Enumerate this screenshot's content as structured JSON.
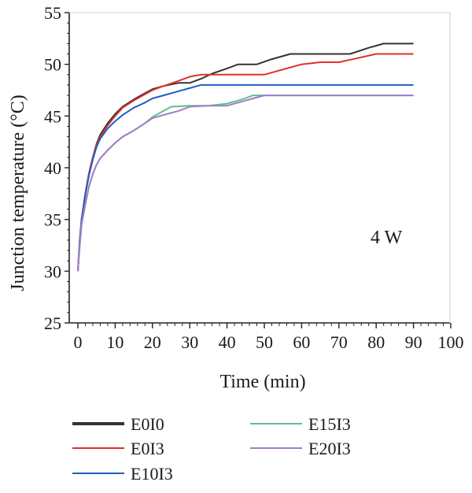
{
  "chart_data": {
    "type": "line",
    "xlabel": "Time (min)",
    "ylabel": "Junction temperature (°C)",
    "xlim": [
      0,
      100
    ],
    "ylim": [
      25,
      55
    ],
    "xticks": [
      0,
      10,
      20,
      30,
      40,
      50,
      60,
      70,
      80,
      90,
      100
    ],
    "yticks": [
      25,
      30,
      35,
      40,
      45,
      50,
      55
    ],
    "grid": false,
    "legend_position": "bottom",
    "annotation": "4 W",
    "series": [
      {
        "name": "E0I0",
        "color": "#333333",
        "points": [
          [
            0,
            30
          ],
          [
            0.5,
            33
          ],
          [
            1,
            35
          ],
          [
            2,
            37.5
          ],
          [
            3,
            39.5
          ],
          [
            4,
            41
          ],
          [
            5,
            42.3
          ],
          [
            6,
            43.2
          ],
          [
            8,
            44.3
          ],
          [
            10,
            45.2
          ],
          [
            12,
            45.9
          ],
          [
            15,
            46.6
          ],
          [
            18,
            47.2
          ],
          [
            20,
            47.6
          ],
          [
            23,
            47.9
          ],
          [
            27,
            48.2
          ],
          [
            30,
            48.2
          ],
          [
            33,
            48.6
          ],
          [
            36,
            49.1
          ],
          [
            40,
            49.6
          ],
          [
            43,
            50
          ],
          [
            48,
            50
          ],
          [
            52,
            50.5
          ],
          [
            57,
            51
          ],
          [
            65,
            51
          ],
          [
            73,
            51
          ],
          [
            78,
            51.6
          ],
          [
            82,
            52
          ],
          [
            90,
            52
          ]
        ]
      },
      {
        "name": "E0I3",
        "color": "#e0302e",
        "points": [
          [
            0,
            30
          ],
          [
            0.5,
            33
          ],
          [
            1,
            35
          ],
          [
            2,
            37.5
          ],
          [
            3,
            39.5
          ],
          [
            4,
            41
          ],
          [
            5,
            42.2
          ],
          [
            6,
            43
          ],
          [
            8,
            44.1
          ],
          [
            10,
            45
          ],
          [
            12,
            45.8
          ],
          [
            15,
            46.5
          ],
          [
            18,
            47.1
          ],
          [
            20,
            47.5
          ],
          [
            23,
            47.9
          ],
          [
            27,
            48.4
          ],
          [
            30,
            48.8
          ],
          [
            33,
            49
          ],
          [
            38,
            49
          ],
          [
            45,
            49
          ],
          [
            50,
            49
          ],
          [
            55,
            49.5
          ],
          [
            60,
            50
          ],
          [
            65,
            50.2
          ],
          [
            70,
            50.2
          ],
          [
            75,
            50.6
          ],
          [
            80,
            51
          ],
          [
            90,
            51
          ]
        ]
      },
      {
        "name": "E10I3",
        "color": "#1f5fc0",
        "points": [
          [
            0,
            30
          ],
          [
            0.5,
            33
          ],
          [
            1,
            35
          ],
          [
            2,
            37.4
          ],
          [
            3,
            39.3
          ],
          [
            4,
            40.8
          ],
          [
            5,
            42
          ],
          [
            6,
            42.8
          ],
          [
            8,
            43.8
          ],
          [
            10,
            44.5
          ],
          [
            12,
            45.1
          ],
          [
            15,
            45.8
          ],
          [
            18,
            46.3
          ],
          [
            20,
            46.7
          ],
          [
            23,
            47
          ],
          [
            27,
            47.4
          ],
          [
            30,
            47.7
          ],
          [
            33,
            48
          ],
          [
            40,
            48
          ],
          [
            50,
            48
          ],
          [
            60,
            48
          ],
          [
            70,
            48
          ],
          [
            80,
            48
          ],
          [
            90,
            48
          ]
        ]
      },
      {
        "name": "E15I3",
        "color": "#5cc08e",
        "points": [
          [
            0,
            30
          ],
          [
            0.5,
            32.5
          ],
          [
            1,
            34.5
          ],
          [
            2,
            36.5
          ],
          [
            3,
            38.2
          ],
          [
            4,
            39.4
          ],
          [
            5,
            40.3
          ],
          [
            6,
            40.9
          ],
          [
            8,
            41.7
          ],
          [
            10,
            42.4
          ],
          [
            12,
            43
          ],
          [
            15,
            43.6
          ],
          [
            18,
            44.3
          ],
          [
            20,
            44.9
          ],
          [
            23,
            45.5
          ],
          [
            25,
            45.9
          ],
          [
            30,
            46
          ],
          [
            35,
            46
          ],
          [
            40,
            46.2
          ],
          [
            44,
            46.6
          ],
          [
            47,
            47
          ],
          [
            50,
            47
          ],
          [
            60,
            47
          ],
          [
            70,
            47
          ],
          [
            80,
            47
          ],
          [
            90,
            47
          ]
        ]
      },
      {
        "name": "E20I3",
        "color": "#a57cc6",
        "points": [
          [
            0,
            30
          ],
          [
            0.5,
            32.5
          ],
          [
            1,
            34.5
          ],
          [
            2,
            36.5
          ],
          [
            3,
            38.2
          ],
          [
            4,
            39.4
          ],
          [
            5,
            40.3
          ],
          [
            6,
            40.9
          ],
          [
            8,
            41.7
          ],
          [
            10,
            42.4
          ],
          [
            12,
            43
          ],
          [
            15,
            43.6
          ],
          [
            18,
            44.3
          ],
          [
            20,
            44.8
          ],
          [
            23,
            45.1
          ],
          [
            27,
            45.5
          ],
          [
            30,
            45.9
          ],
          [
            35,
            46
          ],
          [
            40,
            46
          ],
          [
            43,
            46.3
          ],
          [
            47,
            46.7
          ],
          [
            50,
            47
          ],
          [
            60,
            47
          ],
          [
            70,
            47
          ],
          [
            80,
            47
          ],
          [
            90,
            47
          ]
        ]
      }
    ]
  }
}
